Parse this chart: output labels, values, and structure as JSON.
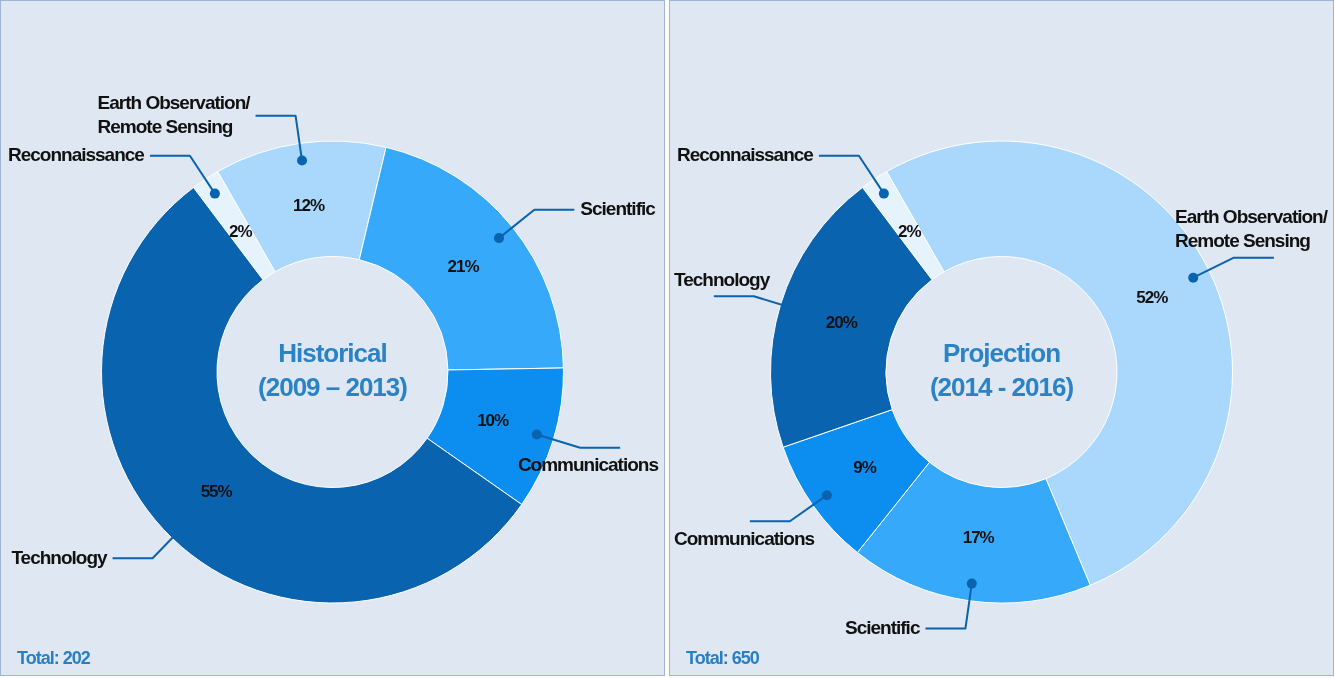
{
  "chart_data": [
    {
      "type": "donut",
      "title": "Historical\n(2009 – 2013)",
      "categories": [
        "Reconnaissance",
        "Earth Observation/ Remote Sensing",
        "Scientific",
        "Communications",
        "Technology"
      ],
      "values": [
        2,
        12,
        21,
        10,
        55
      ],
      "value_labels": [
        "2%",
        "12%",
        "21%",
        "10%",
        "55%"
      ],
      "colors": [
        "#e6f3fd",
        "#a9d8fc",
        "#36a9fb",
        "#0b8ef0",
        "#0a63ae"
      ],
      "annotations": [
        "Total: 202"
      ]
    },
    {
      "type": "donut",
      "title": "Projection\n(2014 - 2016)",
      "categories": [
        "Reconnaissance",
        "Earth Observation/ Remote Sensing",
        "Scientific",
        "Communications",
        "Technology"
      ],
      "values": [
        2,
        52,
        17,
        9,
        20
      ],
      "value_labels": [
        "2%",
        "52%",
        "17%",
        "9%",
        "20%"
      ],
      "colors": [
        "#e6f3fd",
        "#a9d8fc",
        "#36a9fb",
        "#0b8ef0",
        "#0a63ae"
      ],
      "annotations": [
        "Total: 650"
      ]
    }
  ]
}
